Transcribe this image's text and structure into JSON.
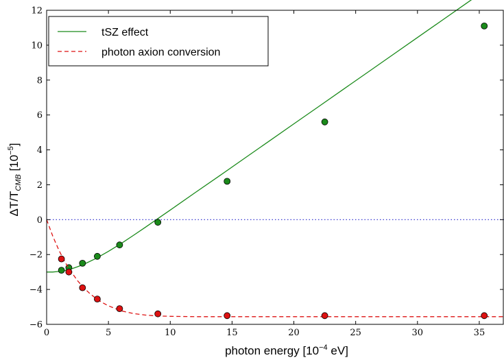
{
  "chart_data": {
    "type": "line",
    "xlabel": "photon energy [10",
    "xlabel_exp": "−4",
    "xlabel_unit": " eV]",
    "ylabel": "ΔT/T",
    "ylabel_sub": "CMB",
    "ylabel_unit": " [10",
    "ylabel_exp": "−5",
    "ylabel_close": "]",
    "xlim": [
      0,
      37
    ],
    "ylim": [
      -6,
      12
    ],
    "xticks": [
      0,
      5,
      10,
      15,
      20,
      25,
      30,
      35
    ],
    "yticks": [
      -6,
      -4,
      -2,
      0,
      2,
      4,
      6,
      8,
      10,
      12
    ],
    "reference_line": {
      "y": 0,
      "style": "dotted",
      "color": "#2222cc"
    },
    "legend": {
      "position": "top-left"
    },
    "series": [
      {
        "name": "tSZ effect",
        "color": "#1a8a1a",
        "line_style": "solid",
        "curve": {
          "x": [
            0,
            0.5,
            1,
            1.5,
            2,
            2.5,
            3,
            4,
            5,
            6,
            7,
            8,
            9,
            10,
            12,
            14,
            16,
            18,
            20,
            22,
            24,
            26,
            28,
            30,
            32,
            34,
            36,
            37
          ],
          "y": [
            -3.0,
            -3.0,
            -2.97,
            -2.91,
            -2.82,
            -2.7,
            -2.56,
            -2.22,
            -1.82,
            -1.38,
            -0.91,
            -0.43,
            0.06,
            0.55,
            1.54,
            2.52,
            3.51,
            4.5,
            5.49,
            6.48,
            7.47,
            8.46,
            9.45,
            10.44,
            11.43,
            12.42,
            13.41,
            13.9
          ]
        },
        "points": {
          "x": [
            1.2,
            1.8,
            2.9,
            4.1,
            5.9,
            9.0,
            14.6,
            22.5,
            35.4
          ],
          "y": [
            -2.9,
            -2.75,
            -2.5,
            -2.1,
            -1.45,
            -0.15,
            2.2,
            5.6,
            11.1
          ]
        }
      },
      {
        "name": "photon axion conversion",
        "color": "#dd1111",
        "line_style": "dashed",
        "curve": {
          "x": [
            0,
            0.5,
            1,
            1.5,
            2,
            2.5,
            3,
            3.5,
            4,
            4.5,
            5,
            6,
            7,
            8,
            9,
            10,
            12,
            14,
            16,
            20,
            25,
            30,
            37
          ],
          "y": [
            0.0,
            -0.95,
            -1.76,
            -2.45,
            -3.0,
            -3.5,
            -3.9,
            -4.24,
            -4.52,
            -4.75,
            -4.94,
            -5.22,
            -5.38,
            -5.47,
            -5.52,
            -5.54,
            -5.56,
            -5.56,
            -5.56,
            -5.56,
            -5.56,
            -5.56,
            -5.56
          ]
        },
        "points": {
          "x": [
            1.2,
            1.8,
            2.9,
            4.1,
            5.9,
            9.0,
            14.6,
            22.5,
            35.4
          ],
          "y": [
            -2.25,
            -3.0,
            -3.9,
            -4.55,
            -5.1,
            -5.4,
            -5.5,
            -5.5,
            -5.5
          ]
        }
      }
    ]
  }
}
